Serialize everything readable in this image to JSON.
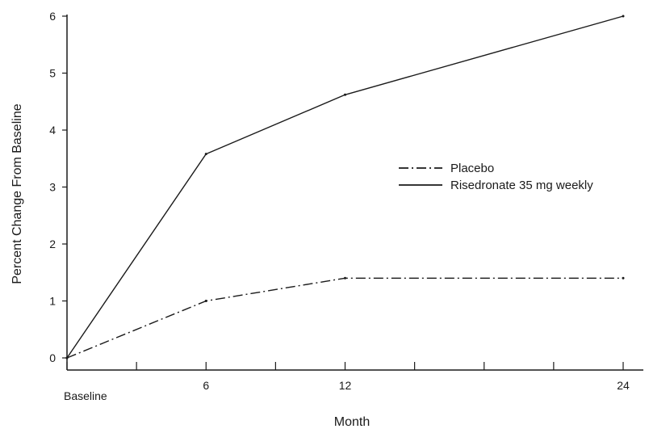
{
  "chart_data": {
    "type": "line",
    "xlabel": "Month",
    "ylabel": "Percent Change From Baseline",
    "x_ticks": [
      {
        "x": 0,
        "label": "Baseline"
      },
      {
        "x": 6,
        "label": "6"
      },
      {
        "x": 12,
        "label": "12"
      },
      {
        "x": 24,
        "label": "24"
      }
    ],
    "xlim": [
      0,
      24
    ],
    "ylim": [
      0,
      6
    ],
    "y_ticks": [
      0,
      1,
      2,
      3,
      4,
      5,
      6
    ],
    "grid": false,
    "legend_position": "right",
    "series": [
      {
        "name": "Placebo",
        "style": "dash-dot",
        "color": "#1a1a1a",
        "x": [
          0,
          6,
          12,
          24
        ],
        "y": [
          0,
          1.0,
          1.4,
          1.4
        ]
      },
      {
        "name": "Risedronate 35 mg weekly",
        "style": "solid",
        "color": "#1a1a1a",
        "x": [
          0,
          6,
          12,
          24
        ],
        "y": [
          0,
          3.58,
          4.62,
          6.0
        ]
      }
    ]
  }
}
